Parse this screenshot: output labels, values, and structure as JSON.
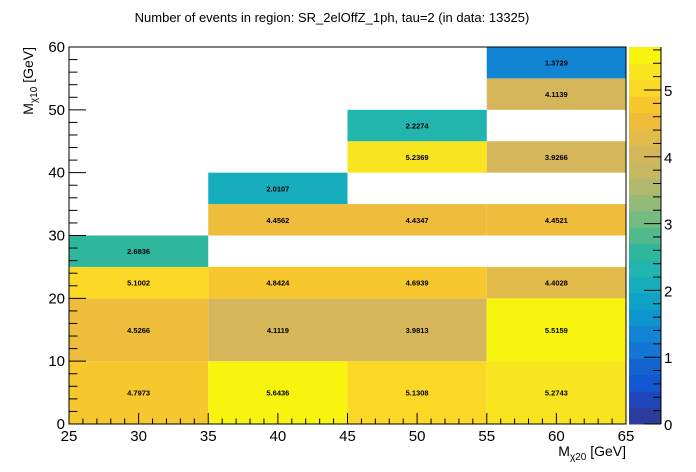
{
  "chart_data": {
    "type": "heatmap",
    "title": "Number of events in region: SR_2elOffZ_1ph, tau=2 (in data: 13325)",
    "xlabel": {
      "main": "M",
      "sub": "χ20",
      "unit": " [GeV]"
    },
    "ylabel": {
      "main": "M",
      "sub": "χ10",
      "unit": " [GeV]"
    },
    "xlim": [
      25,
      65
    ],
    "ylim": [
      0,
      60
    ],
    "x_ticks": [
      25,
      30,
      35,
      40,
      45,
      50,
      55,
      60,
      65
    ],
    "y_ticks": [
      0,
      10,
      20,
      30,
      40,
      50,
      60
    ],
    "colorbar": {
      "range": [
        0,
        5.6436
      ],
      "ticks": [
        0,
        1,
        2,
        3,
        4,
        5
      ],
      "palette": [
        "#2b3d9c",
        "#1e46b9",
        "#1256d0",
        "#1464cf",
        "#1475d5",
        "#1184d3",
        "#0f95cd",
        "#0ea3c6",
        "#16adbd",
        "#22b5ad",
        "#2fb79e",
        "#52b98f",
        "#74bb82",
        "#93ba76",
        "#b0b96b",
        "#c7b861",
        "#d6b65b",
        "#e2bb4b",
        "#eebd3b",
        "#f7c82d",
        "#fbd726",
        "#f9e51f",
        "#f8f40e"
      ]
    },
    "cells": [
      {
        "x": [
          25,
          35
        ],
        "y": [
          0,
          10
        ],
        "value": 4.7973,
        "label": "4.7973"
      },
      {
        "x": [
          25,
          35
        ],
        "y": [
          10,
          20
        ],
        "value": 4.5266,
        "label": "4.5266"
      },
      {
        "x": [
          25,
          35
        ],
        "y": [
          20,
          25
        ],
        "value": 5.1002,
        "label": "5.1002"
      },
      {
        "x": [
          25,
          35
        ],
        "y": [
          25,
          30
        ],
        "value": 2.6836,
        "label": "2.6836"
      },
      {
        "x": [
          35,
          45
        ],
        "y": [
          0,
          10
        ],
        "value": 5.6436,
        "label": "5.6436"
      },
      {
        "x": [
          35,
          45
        ],
        "y": [
          10,
          20
        ],
        "value": 4.1119,
        "label": "4.1119"
      },
      {
        "x": [
          35,
          45
        ],
        "y": [
          20,
          25
        ],
        "value": 4.8424,
        "label": "4.8424"
      },
      {
        "x": [
          35,
          45
        ],
        "y": [
          30,
          35
        ],
        "value": 4.4562,
        "label": "4.4562"
      },
      {
        "x": [
          35,
          45
        ],
        "y": [
          35,
          40
        ],
        "value": 2.0107,
        "label": "2.0107"
      },
      {
        "x": [
          45,
          55
        ],
        "y": [
          0,
          10
        ],
        "value": 5.1308,
        "label": "5.1308"
      },
      {
        "x": [
          45,
          55
        ],
        "y": [
          10,
          20
        ],
        "value": 3.9813,
        "label": "3.9813"
      },
      {
        "x": [
          45,
          55
        ],
        "y": [
          20,
          25
        ],
        "value": 4.6939,
        "label": "4.6939"
      },
      {
        "x": [
          45,
          55
        ],
        "y": [
          30,
          35
        ],
        "value": 4.4347,
        "label": "4.4347"
      },
      {
        "x": [
          45,
          55
        ],
        "y": [
          40,
          45
        ],
        "value": 5.2369,
        "label": "5.2369"
      },
      {
        "x": [
          45,
          55
        ],
        "y": [
          45,
          50
        ],
        "value": 2.2274,
        "label": "2.2274"
      },
      {
        "x": [
          55,
          65
        ],
        "y": [
          0,
          10
        ],
        "value": 5.2743,
        "label": "5.2743"
      },
      {
        "x": [
          55,
          65
        ],
        "y": [
          10,
          20
        ],
        "value": 5.5159,
        "label": "5.5159"
      },
      {
        "x": [
          55,
          65
        ],
        "y": [
          20,
          25
        ],
        "value": 4.4028,
        "label": "4.4028"
      },
      {
        "x": [
          55,
          65
        ],
        "y": [
          30,
          35
        ],
        "value": 4.4521,
        "label": "4.4521"
      },
      {
        "x": [
          55,
          65
        ],
        "y": [
          40,
          45
        ],
        "value": 3.9266,
        "label": "3.9266"
      },
      {
        "x": [
          55,
          65
        ],
        "y": [
          50,
          55
        ],
        "value": 4.1139,
        "label": "4.1139"
      },
      {
        "x": [
          55,
          65
        ],
        "y": [
          55,
          60
        ],
        "value": 1.3729,
        "label": "1.3729"
      }
    ],
    "grid": false,
    "legend": "colorbar-right"
  }
}
